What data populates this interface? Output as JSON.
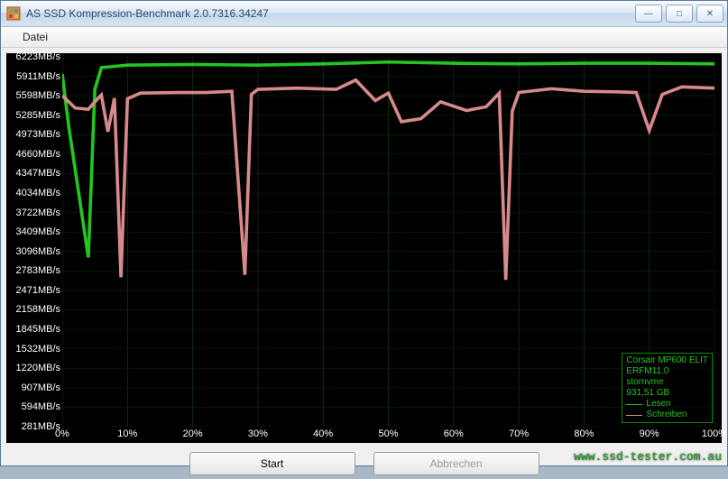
{
  "window": {
    "title": "AS SSD Kompression-Benchmark 2.0.7316.34247",
    "minimize": "―",
    "maximize": "□",
    "close": "✕"
  },
  "menu": {
    "file": "Datei"
  },
  "chart": {
    "type": "line",
    "background_color": "#000000",
    "grid_color": "#0e3a0e",
    "label_color": "#ffffff",
    "label_fontsize": 11,
    "y_axis": {
      "unit": "MB/s",
      "ticks": [
        281,
        594,
        907,
        1220,
        1532,
        1845,
        2158,
        2471,
        2783,
        3096,
        3409,
        3722,
        4034,
        4347,
        4660,
        4973,
        5285,
        5598,
        5911,
        6223
      ]
    },
    "x_axis": {
      "unit": "%",
      "ticks": [
        0,
        10,
        20,
        30,
        40,
        50,
        60,
        70,
        80,
        90,
        100
      ]
    },
    "series": [
      {
        "name": "Lesen",
        "color": "#22c522",
        "width": 1.2,
        "points": [
          [
            0,
            5950
          ],
          [
            1,
            5100
          ],
          [
            2,
            4400
          ],
          [
            4,
            3000
          ],
          [
            5,
            5700
          ],
          [
            6,
            6050
          ],
          [
            10,
            6090
          ],
          [
            20,
            6100
          ],
          [
            30,
            6090
          ],
          [
            40,
            6110
          ],
          [
            50,
            6140
          ],
          [
            60,
            6120
          ],
          [
            70,
            6110
          ],
          [
            80,
            6120
          ],
          [
            90,
            6120
          ],
          [
            100,
            6110
          ]
        ]
      },
      {
        "name": "Schreiben",
        "color": "#d88a8a",
        "width": 1.2,
        "points": [
          [
            0,
            5600
          ],
          [
            2,
            5400
          ],
          [
            4,
            5380
          ],
          [
            5,
            5500
          ],
          [
            6,
            5610
          ],
          [
            7,
            5020
          ],
          [
            8,
            5560
          ],
          [
            9,
            2680
          ],
          [
            10,
            5550
          ],
          [
            12,
            5640
          ],
          [
            18,
            5650
          ],
          [
            22,
            5650
          ],
          [
            26,
            5670
          ],
          [
            28,
            2720
          ],
          [
            29,
            5620
          ],
          [
            30,
            5700
          ],
          [
            36,
            5720
          ],
          [
            42,
            5700
          ],
          [
            45,
            5850
          ],
          [
            48,
            5520
          ],
          [
            50,
            5640
          ],
          [
            52,
            5180
          ],
          [
            55,
            5230
          ],
          [
            58,
            5500
          ],
          [
            62,
            5360
          ],
          [
            65,
            5420
          ],
          [
            67,
            5640
          ],
          [
            68,
            2640
          ],
          [
            69,
            5350
          ],
          [
            70,
            5650
          ],
          [
            75,
            5710
          ],
          [
            80,
            5670
          ],
          [
            85,
            5660
          ],
          [
            88,
            5650
          ],
          [
            90,
            5040
          ],
          [
            92,
            5620
          ],
          [
            95,
            5740
          ],
          [
            100,
            5720
          ]
        ]
      }
    ],
    "legend": {
      "border_color": "#0c8a0c",
      "text_color": "#22c522",
      "lines": [
        "Corsair MP600 ELIT",
        "ERFM11.0",
        "stornvme",
        "931,51 GB"
      ],
      "series": [
        "Lesen",
        "Schreiben"
      ]
    }
  },
  "buttons": {
    "start": "Start",
    "cancel": "Abbrechen"
  },
  "watermark": "www.ssd-tester.com.au"
}
